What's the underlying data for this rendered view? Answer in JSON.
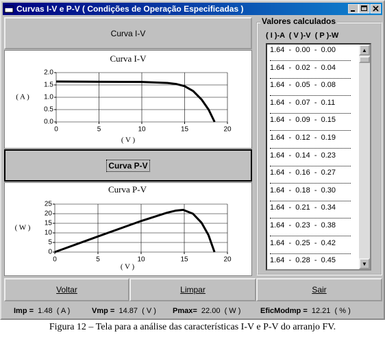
{
  "window": {
    "title": "Curvas I-V e P-V ( Condições de Operação Especificadas )"
  },
  "buttons": {
    "curve_iv": "Curva I-V",
    "curve_pv": "Curva P-V",
    "back": "Voltar",
    "clear": "Limpar",
    "exit": "Sair"
  },
  "chart_data": [
    {
      "type": "line",
      "title": "Curva I-V",
      "x": [
        0,
        5,
        10,
        13,
        14,
        15,
        16,
        17,
        17.8,
        18.5
      ],
      "values": [
        1.64,
        1.63,
        1.62,
        1.58,
        1.54,
        1.45,
        1.25,
        0.9,
        0.5,
        0
      ],
      "color": "#000000",
      "xlim": [
        0,
        20
      ],
      "ylim": [
        0,
        2
      ],
      "xticks": [
        0,
        5,
        10,
        15,
        20
      ],
      "yticks": [
        {
          "value": 0,
          "label": "0.0"
        },
        {
          "value": 0.5,
          "label": "0.5"
        },
        {
          "value": 1,
          "label": "1.0"
        },
        {
          "value": 1.5,
          "label": "1.5"
        },
        {
          "value": 2,
          "label": "2.0"
        }
      ],
      "y_label": "( A )",
      "x_label": "( V )",
      "grid": true
    },
    {
      "type": "line",
      "title": "Curva P-V",
      "x": [
        0,
        5,
        10,
        13,
        14,
        14.87,
        16,
        17,
        17.8,
        18.5
      ],
      "values": [
        0,
        8.15,
        16.2,
        20.5,
        21.6,
        22,
        20,
        15.3,
        8.9,
        0
      ],
      "color": "#000000",
      "xlim": [
        0,
        20
      ],
      "ylim": [
        0,
        25
      ],
      "xticks": [
        0,
        5,
        10,
        15,
        20
      ],
      "yticks": [
        0,
        5,
        10,
        15,
        20,
        25
      ],
      "y_label": "( W )",
      "x_label": "( V )",
      "grid": true
    }
  ],
  "list": {
    "title": "Valores calculados",
    "header": "( I )-A  ( V )-V  ( P )-W",
    "rows": [
      "1.64  -  0.00  -  0.00",
      "1.64  -  0.02  -  0.04",
      "1.64  -  0.05  -  0.08",
      "1.64  -  0.07  -  0.11",
      "1.64  -  0.09  -  0.15",
      "1.64  -  0.12  -  0.19",
      "1.64  -  0.14  -  0.23",
      "1.64  -  0.16  -  0.27",
      "1.64  -  0.18  -  0.30",
      "1.64  -  0.21  -  0.34",
      "1.64  -  0.23  -  0.38",
      "1.64  -  0.25  -  0.42",
      "1.64  -  0.28  -  0.45"
    ]
  },
  "status": [
    {
      "label": "Imp =",
      "value": "1.48",
      "unit": "( A )"
    },
    {
      "label": "Vmp =",
      "value": "14.87",
      "unit": "( V )"
    },
    {
      "label": "Pmax=",
      "value": "22.00",
      "unit": "( W )"
    },
    {
      "label": "EficModmp =",
      "value": "12.21",
      "unit": "( % )"
    }
  ],
  "caption": "Figura 12 – Tela para a análise das características I-V e P-V do arranjo FV."
}
